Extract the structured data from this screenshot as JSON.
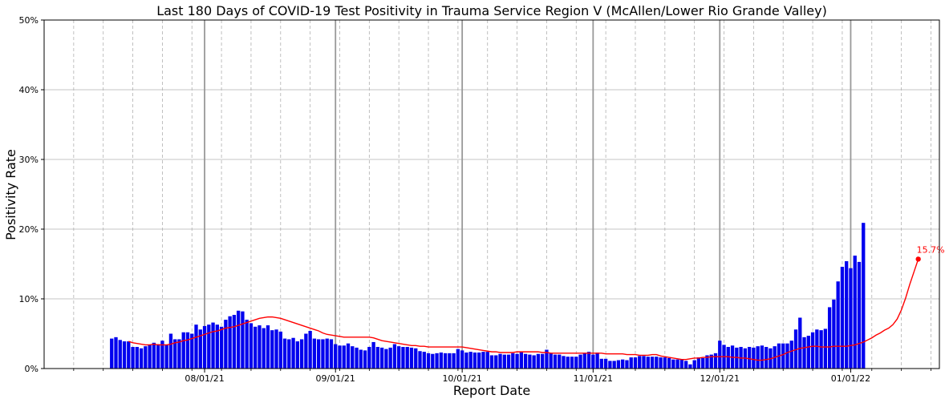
{
  "chart_data": {
    "type": "bar",
    "title": "Last 180 Days of COVID-19 Test Positivity in Trauma Service Region V (McAllen/Lower Rio Grande Valley)",
    "xlabel": "Report Date",
    "ylabel": "Positivity Rate",
    "ylim": [
      0,
      50
    ],
    "y_unit": "%",
    "y_ticks": [
      0,
      10,
      20,
      30,
      40,
      50
    ],
    "y_tick_labels": [
      "0%",
      "10%",
      "20%",
      "30%",
      "40%",
      "50%"
    ],
    "x_tick_labels": [
      "08/01/21",
      "09/01/21",
      "10/01/21",
      "11/01/21",
      "12/01/21",
      "01/01/22"
    ],
    "x_range": [
      "2021-06-24",
      "2022-01-22"
    ],
    "grid": true,
    "bar_color": "#0000ee",
    "line_color": "#ff0000",
    "bars": {
      "start_date": "2021-07-10",
      "end_date": "2022-01-07",
      "values": [
        4.3,
        4.5,
        4.1,
        3.9,
        3.9,
        3.1,
        3.1,
        2.9,
        3.2,
        3.4,
        3.7,
        3.5,
        4.0,
        3.4,
        5.0,
        4.2,
        4.2,
        5.2,
        5.2,
        5.0,
        6.3,
        5.6,
        6.1,
        6.3,
        6.6,
        6.3,
        6.0,
        7.0,
        7.5,
        7.7,
        8.3,
        8.2,
        7.0,
        6.5,
        6.0,
        6.2,
        5.8,
        6.2,
        5.5,
        5.6,
        5.3,
        4.3,
        4.2,
        4.4,
        3.9,
        4.2,
        5.0,
        5.4,
        4.3,
        4.2,
        4.2,
        4.3,
        4.2,
        3.5,
        3.3,
        3.3,
        3.6,
        3.2,
        3.0,
        2.7,
        2.6,
        3.1,
        3.8,
        3.1,
        3.0,
        2.8,
        3.0,
        3.5,
        3.2,
        3.1,
        3.1,
        3.0,
        2.9,
        2.5,
        2.4,
        2.2,
        2.1,
        2.2,
        2.3,
        2.2,
        2.2,
        2.2,
        2.8,
        2.6,
        2.3,
        2.4,
        2.3,
        2.3,
        2.4,
        2.4,
        1.9,
        1.9,
        2.1,
        2.0,
        2.0,
        2.2,
        2.1,
        2.4,
        2.1,
        2.0,
        1.9,
        2.1,
        2.1,
        2.7,
        2.2,
        2.0,
        2.0,
        1.8,
        1.7,
        1.7,
        1.7,
        2.0,
        2.2,
        2.4,
        2.0,
        2.3,
        1.4,
        1.4,
        1.1,
        1.1,
        1.2,
        1.3,
        1.2,
        1.6,
        1.6,
        1.8,
        1.8,
        1.7,
        1.7,
        1.7,
        1.6,
        1.6,
        1.5,
        1.3,
        1.3,
        1.3,
        1.1,
        0.6,
        1.2,
        1.6,
        1.5,
        1.9,
        2.0,
        2.2,
        4.0,
        3.4,
        3.1,
        3.3,
        3.0,
        3.1,
        2.9,
        3.1,
        3.0,
        3.2,
        3.3,
        3.1,
        2.9,
        3.2,
        3.6,
        3.6,
        3.6,
        4.0,
        5.6,
        7.3,
        4.5,
        4.7,
        5.2,
        5.6,
        5.5,
        5.7,
        8.8,
        9.9,
        12.5,
        14.6,
        15.4,
        14.4,
        16.2,
        15.3,
        20.9
      ]
    },
    "rolling_average": {
      "start_date": "2021-07-14",
      "end_date": "2022-01-07",
      "values": [
        3.9,
        3.7,
        3.6,
        3.5,
        3.4,
        3.4,
        3.5,
        3.4,
        3.4,
        3.4,
        3.5,
        3.7,
        3.8,
        4.0,
        4.1,
        4.3,
        4.5,
        4.7,
        4.9,
        5.1,
        5.3,
        5.4,
        5.6,
        5.8,
        5.9,
        6.0,
        6.2,
        6.4,
        6.6,
        6.8,
        7.0,
        7.2,
        7.3,
        7.4,
        7.4,
        7.3,
        7.2,
        7.0,
        6.8,
        6.6,
        6.4,
        6.2,
        6.0,
        5.8,
        5.6,
        5.4,
        5.1,
        4.9,
        4.8,
        4.7,
        4.6,
        4.5,
        4.5,
        4.5,
        4.5,
        4.5,
        4.5,
        4.5,
        4.4,
        4.2,
        4.0,
        3.9,
        3.8,
        3.7,
        3.6,
        3.5,
        3.4,
        3.3,
        3.3,
        3.2,
        3.2,
        3.1,
        3.1,
        3.1,
        3.1,
        3.1,
        3.1,
        3.1,
        3.1,
        3.1,
        3.0,
        2.9,
        2.8,
        2.7,
        2.6,
        2.5,
        2.4,
        2.4,
        2.3,
        2.3,
        2.3,
        2.3,
        2.4,
        2.4,
        2.4,
        2.4,
        2.4,
        2.4,
        2.3,
        2.3,
        2.2,
        2.2,
        2.2,
        2.2,
        2.2,
        2.2,
        2.2,
        2.2,
        2.2,
        2.2,
        2.2,
        2.2,
        2.2,
        2.1,
        2.1,
        2.1,
        2.1,
        2.1,
        2.0,
        2.0,
        2.0,
        1.9,
        1.9,
        1.9,
        2.0,
        2.0,
        1.8,
        1.7,
        1.6,
        1.5,
        1.4,
        1.3,
        1.3,
        1.4,
        1.5,
        1.5,
        1.6,
        1.6,
        1.7,
        1.7,
        1.7,
        1.7,
        1.7,
        1.6,
        1.6,
        1.5,
        1.5,
        1.4,
        1.3,
        1.2,
        1.2,
        1.3,
        1.4,
        1.6,
        1.8,
        2.0,
        2.3,
        2.5,
        2.7,
        2.9,
        3.0,
        3.1,
        3.2,
        3.2,
        3.1,
        3.1,
        3.1,
        3.2,
        3.2,
        3.2,
        3.2,
        3.3,
        3.4,
        3.6,
        3.8,
        4.1,
        4.4,
        4.8,
        5.1,
        5.5,
        5.8,
        6.3,
        7.1,
        8.4,
        10.1,
        12.1,
        13.9,
        15.7
      ]
    },
    "last_point_label": "15.7%"
  }
}
